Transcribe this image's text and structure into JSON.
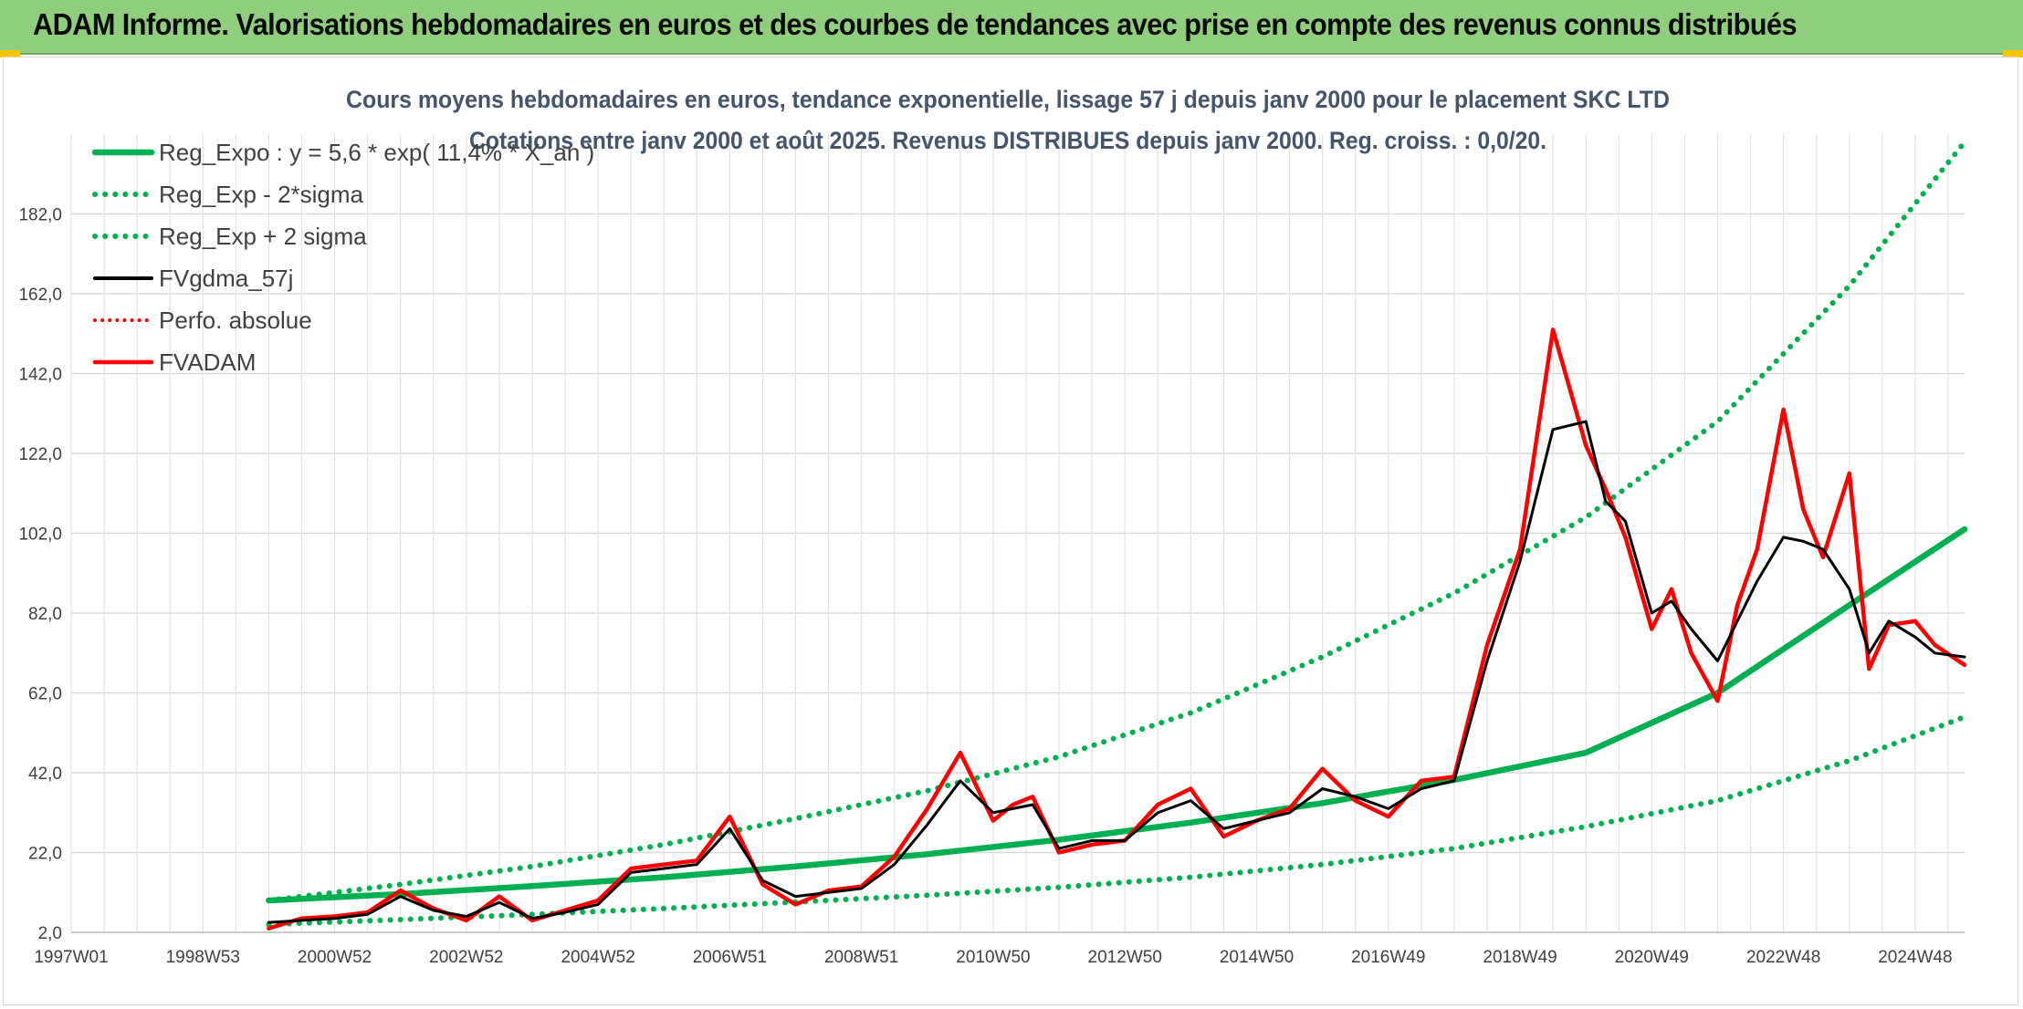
{
  "banner": {
    "title": "ADAM Informe. Valorisations hebdomadaires en euros et des courbes de tendances avec prise en compte des revenus connus distribués"
  },
  "colors": {
    "banner_bg": "#8fce7c",
    "green": "#00b050",
    "black": "#000000",
    "red": "#ff0000",
    "grid": "#d9d9d9"
  },
  "chart_data": {
    "type": "line",
    "title": "Cours moyens hebdomadaires en euros, tendance exponentielle, lissage 57 j depuis janv 2000 pour le placement SKC LTD",
    "subtitle": "Cotations entre janv 2000 et août 2025. Revenus DISTRIBUES depuis janv 2000. Reg. croiss. : 0,0/20.",
    "xlabel": "",
    "ylabel": "",
    "xlim": [
      1997.0,
      2025.75
    ],
    "ylim": [
      2,
      202
    ],
    "y_ticks": [
      "2,0",
      "22,0",
      "42,0",
      "62,0",
      "82,0",
      "102,0",
      "122,0",
      "142,0",
      "162,0",
      "182,0"
    ],
    "x_ticks": [
      {
        "label": "1997W01",
        "x": 1997.0
      },
      {
        "label": "1998W53",
        "x": 1999.0
      },
      {
        "label": "2000W52",
        "x": 2001.0
      },
      {
        "label": "2002W52",
        "x": 2003.0
      },
      {
        "label": "2004W52",
        "x": 2005.0
      },
      {
        "label": "2006W51",
        "x": 2007.0
      },
      {
        "label": "2008W51",
        "x": 2009.0
      },
      {
        "label": "2010W50",
        "x": 2011.0
      },
      {
        "label": "2012W50",
        "x": 2013.0
      },
      {
        "label": "2014W50",
        "x": 2015.0
      },
      {
        "label": "2016W49",
        "x": 2017.0
      },
      {
        "label": "2018W49",
        "x": 2019.0
      },
      {
        "label": "2020W49",
        "x": 2021.0
      },
      {
        "label": "2022W48",
        "x": 2023.0
      },
      {
        "label": "2024W48",
        "x": 2025.0
      }
    ],
    "grid": true,
    "legend_position": "top-left",
    "series": [
      {
        "name": "Reg_Expo : y = 5,6 * exp( 11,4% *  X_an )",
        "style": "solid",
        "color": "#00b050",
        "x": [
          2000.0,
          2002.0,
          2004.0,
          2006.0,
          2008.0,
          2010.0,
          2012.0,
          2014.0,
          2016.0,
          2018.0,
          2020.0,
          2022.0,
          2024.0,
          2025.75
        ],
        "y": [
          10.0,
          11.6,
          13.6,
          15.8,
          18.5,
          21.6,
          25.2,
          29.5,
          34.4,
          40.2,
          47.0,
          62.0,
          84.0,
          103.0
        ]
      },
      {
        "name": "Reg_Exp - 2*sigma",
        "style": "dotted",
        "color": "#00b050",
        "x": [
          2000.0,
          2002.0,
          2004.0,
          2006.0,
          2008.0,
          2010.0,
          2012.0,
          2014.0,
          2016.0,
          2018.0,
          2020.0,
          2022.0,
          2024.0,
          2025.75
        ],
        "y": [
          4.0,
          5.2,
          6.5,
          8.0,
          9.6,
          11.3,
          13.3,
          15.8,
          19.0,
          23.0,
          28.5,
          35.0,
          45.0,
          56.0
        ]
      },
      {
        "name": "Reg_Exp + 2 sigma",
        "style": "dotted",
        "color": "#00b050",
        "x": [
          2000.0,
          2002.0,
          2004.0,
          2006.0,
          2008.0,
          2010.0,
          2012.0,
          2014.0,
          2016.0,
          2018.0,
          2020.0,
          2022.0,
          2024.0,
          2025.75
        ],
        "y": [
          10.0,
          14.0,
          18.5,
          24.0,
          30.5,
          37.5,
          46.0,
          57.0,
          71.0,
          87.0,
          106.0,
          130.0,
          164.0,
          200.0
        ]
      },
      {
        "name": "FVgdma_57j",
        "style": "solid",
        "color": "#000000",
        "x": [
          2000.0,
          2000.5,
          2001.0,
          2001.5,
          2002.0,
          2002.5,
          2003.0,
          2003.5,
          2004.0,
          2004.5,
          2005.0,
          2005.5,
          2006.0,
          2006.5,
          2007.0,
          2007.5,
          2008.0,
          2008.5,
          2009.0,
          2009.5,
          2010.0,
          2010.5,
          2011.0,
          2011.3,
          2011.6,
          2012.0,
          2012.5,
          2013.0,
          2013.5,
          2014.0,
          2014.5,
          2015.0,
          2015.5,
          2016.0,
          2016.5,
          2017.0,
          2017.5,
          2018.0,
          2018.5,
          2019.0,
          2019.5,
          2020.0,
          2020.3,
          2020.6,
          2021.0,
          2021.3,
          2021.6,
          2022.0,
          2022.3,
          2022.6,
          2023.0,
          2023.3,
          2023.6,
          2024.0,
          2024.3,
          2024.6,
          2025.0,
          2025.3,
          2025.75
        ],
        "y": [
          4.5,
          5.0,
          5.5,
          6.5,
          11.0,
          7.5,
          6.0,
          9.5,
          5.5,
          7.0,
          9.0,
          17.0,
          18.0,
          19.0,
          28.0,
          15.0,
          11.0,
          12.0,
          13.0,
          19.0,
          29.0,
          40.0,
          32.0,
          33.0,
          34.0,
          23.0,
          25.0,
          25.0,
          32.0,
          35.0,
          28.0,
          30.0,
          32.0,
          38.0,
          36.0,
          33.0,
          38.0,
          40.0,
          70.0,
          95.0,
          128.0,
          130.0,
          110.0,
          105.0,
          82.0,
          85.0,
          78.0,
          70.0,
          80.0,
          90.0,
          101.0,
          100.0,
          98.0,
          88.0,
          72.0,
          80.0,
          76.0,
          72.0,
          71.0
        ]
      },
      {
        "name": "Perfo. absolue",
        "style": "dotted",
        "color": "#ff0000",
        "x": [],
        "y": []
      },
      {
        "name": "FVADAM",
        "style": "solid",
        "color": "#ff0000",
        "x": [
          2000.0,
          2000.5,
          2001.0,
          2001.5,
          2002.0,
          2002.5,
          2003.0,
          2003.5,
          2004.0,
          2004.5,
          2005.0,
          2005.5,
          2006.0,
          2006.5,
          2007.0,
          2007.5,
          2008.0,
          2008.5,
          2009.0,
          2009.5,
          2010.0,
          2010.5,
          2011.0,
          2011.3,
          2011.6,
          2012.0,
          2012.5,
          2013.0,
          2013.5,
          2014.0,
          2014.5,
          2015.0,
          2015.5,
          2016.0,
          2016.5,
          2017.0,
          2017.5,
          2018.0,
          2018.5,
          2019.0,
          2019.5,
          2020.0,
          2020.3,
          2020.6,
          2021.0,
          2021.3,
          2021.6,
          2022.0,
          2022.3,
          2022.6,
          2023.0,
          2023.3,
          2023.6,
          2024.0,
          2024.3,
          2024.6,
          2025.0,
          2025.3,
          2025.75
        ],
        "y": [
          3.0,
          5.5,
          6.0,
          7.0,
          12.5,
          8.0,
          5.0,
          11.0,
          5.0,
          7.5,
          10.0,
          18.0,
          19.0,
          20.0,
          31.0,
          14.0,
          9.0,
          12.5,
          13.5,
          21.0,
          33.0,
          47.0,
          30.0,
          34.0,
          36.0,
          22.0,
          24.0,
          25.0,
          34.0,
          38.0,
          26.0,
          30.0,
          33.0,
          43.0,
          35.0,
          31.0,
          40.0,
          41.0,
          74.0,
          98.0,
          153.0,
          124.0,
          113.0,
          101.0,
          78.0,
          88.0,
          72.0,
          60.0,
          84.0,
          98.0,
          133.0,
          108.0,
          96.0,
          117.0,
          68.0,
          79.0,
          80.0,
          74.0,
          69.0
        ]
      }
    ]
  }
}
